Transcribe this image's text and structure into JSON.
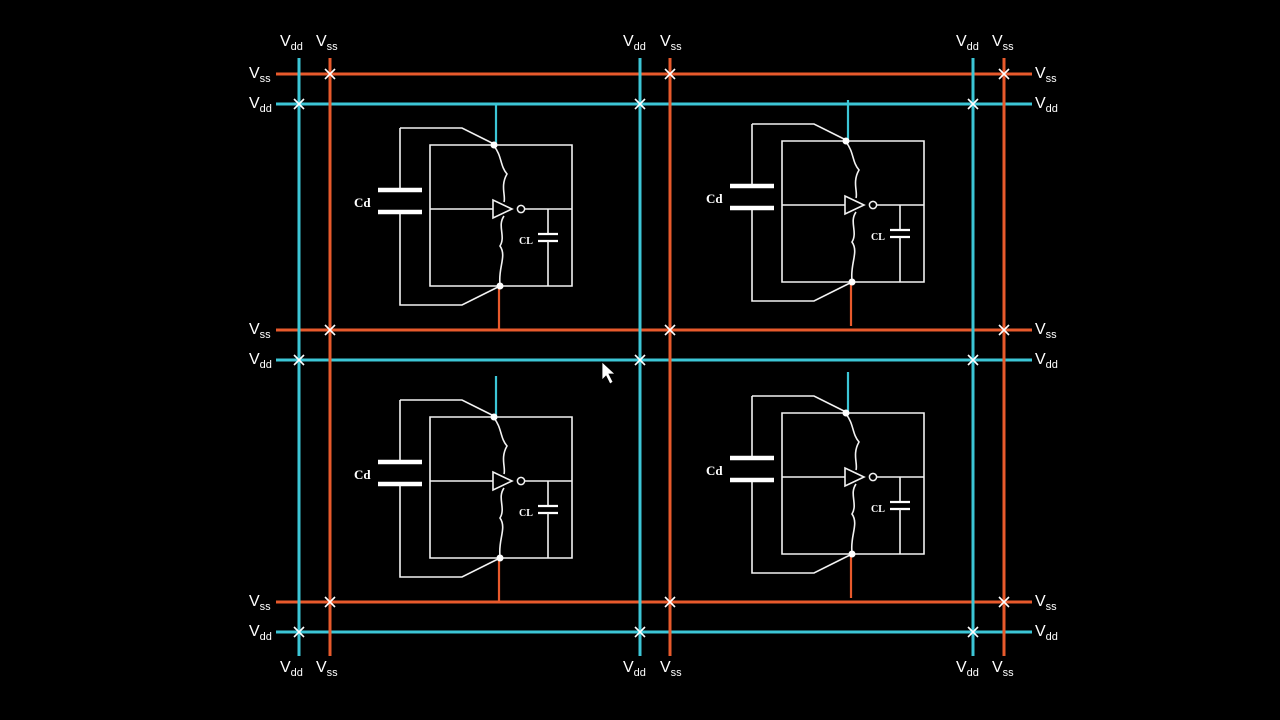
{
  "rails": {
    "vdd": {
      "main": "V",
      "sub": "dd",
      "color": "#3cc6d6"
    },
    "vss": {
      "main": "V",
      "sub": "ss",
      "color": "#e85a2c"
    }
  },
  "cells": [
    {
      "cap_label": "Cd",
      "load_label": "CL"
    },
    {
      "cap_label": "Cd",
      "load_label": "CL"
    },
    {
      "cap_label": "Cd",
      "load_label": "CL"
    },
    {
      "cap_label": "Cd",
      "load_label": "CL"
    }
  ],
  "cursor": {
    "icon": "arrow-cursor-icon"
  }
}
